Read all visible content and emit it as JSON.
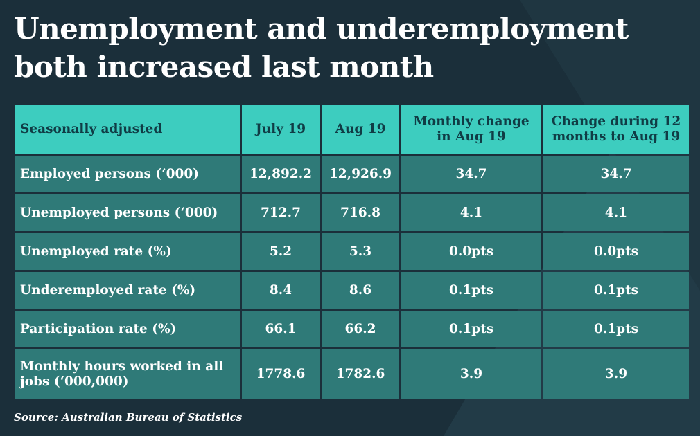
{
  "title": "Unemployment and underemployment both increased last month",
  "table": {
    "headers": [
      "Seasonally adjusted",
      "July 19",
      "Aug 19",
      "Monthly change in Aug 19",
      "Change during 12 months to Aug 19"
    ],
    "rows": [
      {
        "label": "Employed persons (‘000)",
        "july": "12,892.2",
        "aug": "12,926.9",
        "monthly": "34.7",
        "annual": "34.7"
      },
      {
        "label": "Unemployed persons (‘000)",
        "july": "712.7",
        "aug": "716.8",
        "monthly": "4.1",
        "annual": "4.1"
      },
      {
        "label": "Unemployed rate (%)",
        "july": "5.2",
        "aug": "5.3",
        "monthly": "0.0pts",
        "annual": "0.0pts"
      },
      {
        "label": "Underemployed rate (%)",
        "july": "8.4",
        "aug": "8.6",
        "monthly": "0.1pts",
        "annual": "0.1pts"
      },
      {
        "label": "Participation rate (%)",
        "july": "66.1",
        "aug": "66.2",
        "monthly": "0.1pts",
        "annual": "0.1pts"
      },
      {
        "label": "Monthly hours worked in all jobs (‘000,000)",
        "july": "1778.6",
        "aug": "1782.6",
        "monthly": "3.9",
        "annual": "3.9"
      }
    ]
  },
  "source": "Source: Australian Bureau of Statistics",
  "colors": {
    "background": "#1b2f3a",
    "header_fill": "#3dcdbf",
    "header_text": "#103c45",
    "row_fill": "#2f7a78",
    "text": "#ffffff"
  }
}
